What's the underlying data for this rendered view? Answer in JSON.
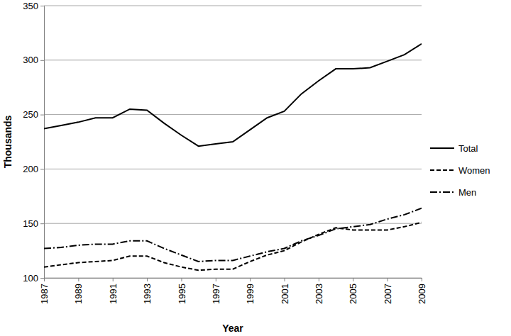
{
  "chart_data": {
    "type": "line",
    "x_label": "Year",
    "y_label": "Thousands",
    "x": [
      1987,
      1988,
      1989,
      1990,
      1991,
      1992,
      1993,
      1994,
      1995,
      1996,
      1997,
      1998,
      1999,
      2000,
      2001,
      2002,
      2003,
      2004,
      2005,
      2006,
      2007,
      2008,
      2009
    ],
    "series": [
      {
        "name": "Total",
        "color": "#000000",
        "line_style": "solid",
        "values": [
          237,
          240,
          243,
          247,
          247,
          255,
          254,
          242,
          231,
          221,
          223,
          225,
          236,
          247,
          253,
          269,
          281,
          292,
          292,
          293,
          299,
          305,
          315
        ]
      },
      {
        "name": "Women",
        "color": "#000000",
        "line_style": "dashed",
        "values": [
          110,
          112,
          114,
          115,
          116,
          120,
          120,
          114,
          110,
          107,
          108,
          108,
          115,
          121,
          125,
          133,
          140,
          146,
          144,
          144,
          144,
          147,
          151
        ]
      },
      {
        "name": "Men",
        "color": "#000000",
        "line_style": "dashdot",
        "values": [
          127,
          128,
          130,
          131,
          131,
          134,
          134,
          127,
          121,
          115,
          116,
          116,
          120,
          124,
          127,
          134,
          139,
          145,
          147,
          149,
          154,
          158,
          164
        ]
      }
    ],
    "xlim": [
      1987,
      2009
    ],
    "xticks": [
      1987,
      1989,
      1991,
      1993,
      1995,
      1997,
      1999,
      2001,
      2003,
      2005,
      2007,
      2009
    ],
    "ylim": [
      100,
      350
    ],
    "yticks": [
      100,
      150,
      200,
      250,
      300,
      350
    ],
    "grid": true,
    "legend": "right"
  }
}
